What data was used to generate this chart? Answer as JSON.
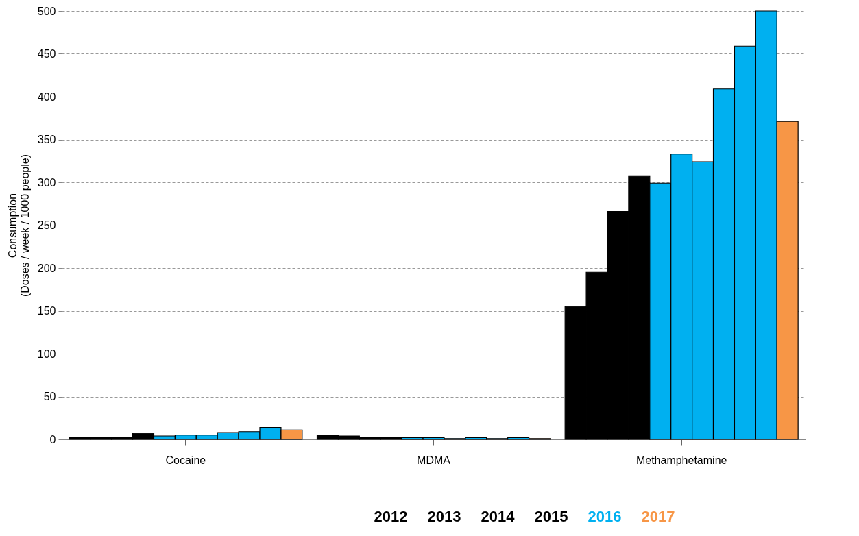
{
  "chart_data": {
    "type": "bar",
    "categories": [
      "Cocaine",
      "MDMA",
      "Methamphetamine"
    ],
    "ylabel": "Consumption\n(Doses / week / 1000 people)",
    "series": [
      {
        "color": "#000000",
        "values": [
          2,
          5,
          155
        ]
      },
      {
        "color": "#000000",
        "values": [
          2,
          4,
          195
        ]
      },
      {
        "color": "#000000",
        "values": [
          2,
          2,
          266
        ]
      },
      {
        "color": "#000000",
        "values": [
          7,
          2,
          307
        ]
      },
      {
        "name": "2016",
        "color": "#00b0f0",
        "values": [
          4,
          2,
          299
        ]
      },
      {
        "color": "#00b0f0",
        "values": [
          5,
          2,
          333
        ]
      },
      {
        "color": "#00b0f0",
        "values": [
          5,
          1,
          324
        ]
      },
      {
        "color": "#00b0f0",
        "values": [
          8,
          2,
          409
        ]
      },
      {
        "color": "#00b0f0",
        "values": [
          9,
          1,
          459
        ]
      },
      {
        "color": "#00b0f0",
        "values": [
          14,
          2,
          500
        ]
      },
      {
        "name": "2017",
        "color": "#f79646",
        "values": [
          11,
          1,
          371
        ]
      }
    ],
    "ylim": [
      0,
      500
    ],
    "yticks": [
      0,
      50,
      100,
      150,
      200,
      250,
      300,
      350,
      400,
      450,
      500
    ],
    "annotations": [
      "2012",
      "2013",
      "2014",
      "2015"
    ],
    "grid": "y",
    "legend": "bottom"
  }
}
